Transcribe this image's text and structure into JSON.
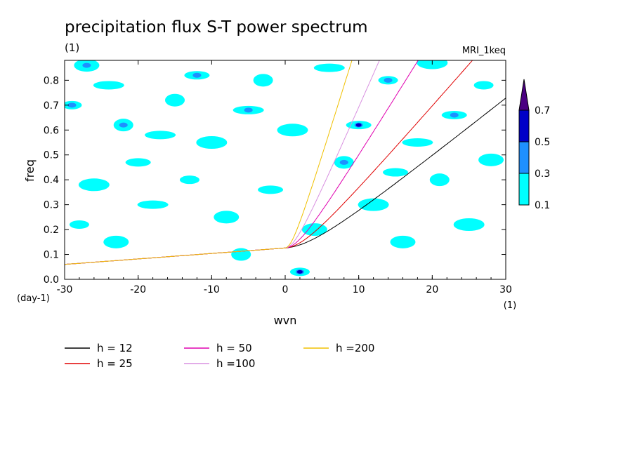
{
  "chart_data": {
    "type": "heatmap",
    "title": "precipitation flux S-T power spectrum",
    "subtitle_left": "(1)",
    "subtitle_right": "MRI_1keq",
    "xlabel": "wvn",
    "ylabel": "freq",
    "x_unit": "(1)",
    "y_unit": "(day-1)",
    "xlim": [
      -30,
      30
    ],
    "ylim": [
      0,
      0.88
    ],
    "x_ticks": [
      -30,
      -20,
      -10,
      0,
      10,
      20,
      30
    ],
    "x_tick_labels": [
      "-30",
      "-20",
      "-10",
      "0",
      "10",
      "20",
      "30"
    ],
    "y_ticks": [
      0.0,
      0.1,
      0.2,
      0.3,
      0.4,
      0.5,
      0.6,
      0.7,
      0.8
    ],
    "y_tick_labels": [
      "0.0",
      "0.1",
      "0.2",
      "0.3",
      "0.4",
      "0.5",
      "0.6",
      "0.7",
      "0.8"
    ],
    "colorbar": {
      "levels": [
        "0.1",
        "0.3",
        "0.5",
        "0.7"
      ],
      "colors": [
        "#00ffff",
        "#1e90ff",
        "#0000c8",
        "#4b0082"
      ],
      "extend": "max"
    },
    "patches": [
      {
        "x": -29,
        "y": 0.7,
        "level": 1
      },
      {
        "x": -27,
        "y": 0.86,
        "level": 1
      },
      {
        "x": -24,
        "y": 0.78,
        "level": 0
      },
      {
        "x": -22,
        "y": 0.62,
        "level": 1
      },
      {
        "x": -20,
        "y": 0.47,
        "level": 0
      },
      {
        "x": -26,
        "y": 0.38,
        "level": 0
      },
      {
        "x": -28,
        "y": 0.22,
        "level": 0
      },
      {
        "x": -23,
        "y": 0.15,
        "level": 0
      },
      {
        "x": -18,
        "y": 0.3,
        "level": 0
      },
      {
        "x": -15,
        "y": 0.72,
        "level": 0
      },
      {
        "x": -12,
        "y": 0.82,
        "level": 1
      },
      {
        "x": -10,
        "y": 0.55,
        "level": 0
      },
      {
        "x": -13,
        "y": 0.4,
        "level": 0
      },
      {
        "x": -8,
        "y": 0.25,
        "level": 0
      },
      {
        "x": -5,
        "y": 0.68,
        "level": 1
      },
      {
        "x": -3,
        "y": 0.8,
        "level": 0
      },
      {
        "x": -2,
        "y": 0.36,
        "level": 0
      },
      {
        "x": 1,
        "y": 0.6,
        "level": 0
      },
      {
        "x": 2,
        "y": 0.03,
        "level": 2
      },
      {
        "x": 4,
        "y": 0.2,
        "level": 0
      },
      {
        "x": 6,
        "y": 0.85,
        "level": 0
      },
      {
        "x": 8,
        "y": 0.47,
        "level": 1
      },
      {
        "x": 10,
        "y": 0.62,
        "level": 2
      },
      {
        "x": 12,
        "y": 0.3,
        "level": 0
      },
      {
        "x": 14,
        "y": 0.8,
        "level": 1
      },
      {
        "x": 16,
        "y": 0.15,
        "level": 0
      },
      {
        "x": 18,
        "y": 0.55,
        "level": 0
      },
      {
        "x": 21,
        "y": 0.4,
        "level": 0
      },
      {
        "x": 23,
        "y": 0.66,
        "level": 1
      },
      {
        "x": 25,
        "y": 0.22,
        "level": 0
      },
      {
        "x": 27,
        "y": 0.78,
        "level": 0
      },
      {
        "x": 28,
        "y": 0.48,
        "level": 0
      },
      {
        "x": -17,
        "y": 0.58,
        "level": 0
      },
      {
        "x": -6,
        "y": 0.1,
        "level": 0
      },
      {
        "x": 15,
        "y": 0.43,
        "level": 0
      },
      {
        "x": 20,
        "y": 0.87,
        "level": 0
      }
    ],
    "series": [
      {
        "name": "h = 12",
        "color": "#000000",
        "h": 12
      },
      {
        "name": "h = 25",
        "color": "#e00000",
        "h": 25
      },
      {
        "name": "h = 50",
        "color": "#e000b0",
        "h": 50
      },
      {
        "name": "h =100",
        "color": "#d890e0",
        "h": 100
      },
      {
        "name": "h =200",
        "color": "#f0c000",
        "h": 200
      }
    ]
  }
}
